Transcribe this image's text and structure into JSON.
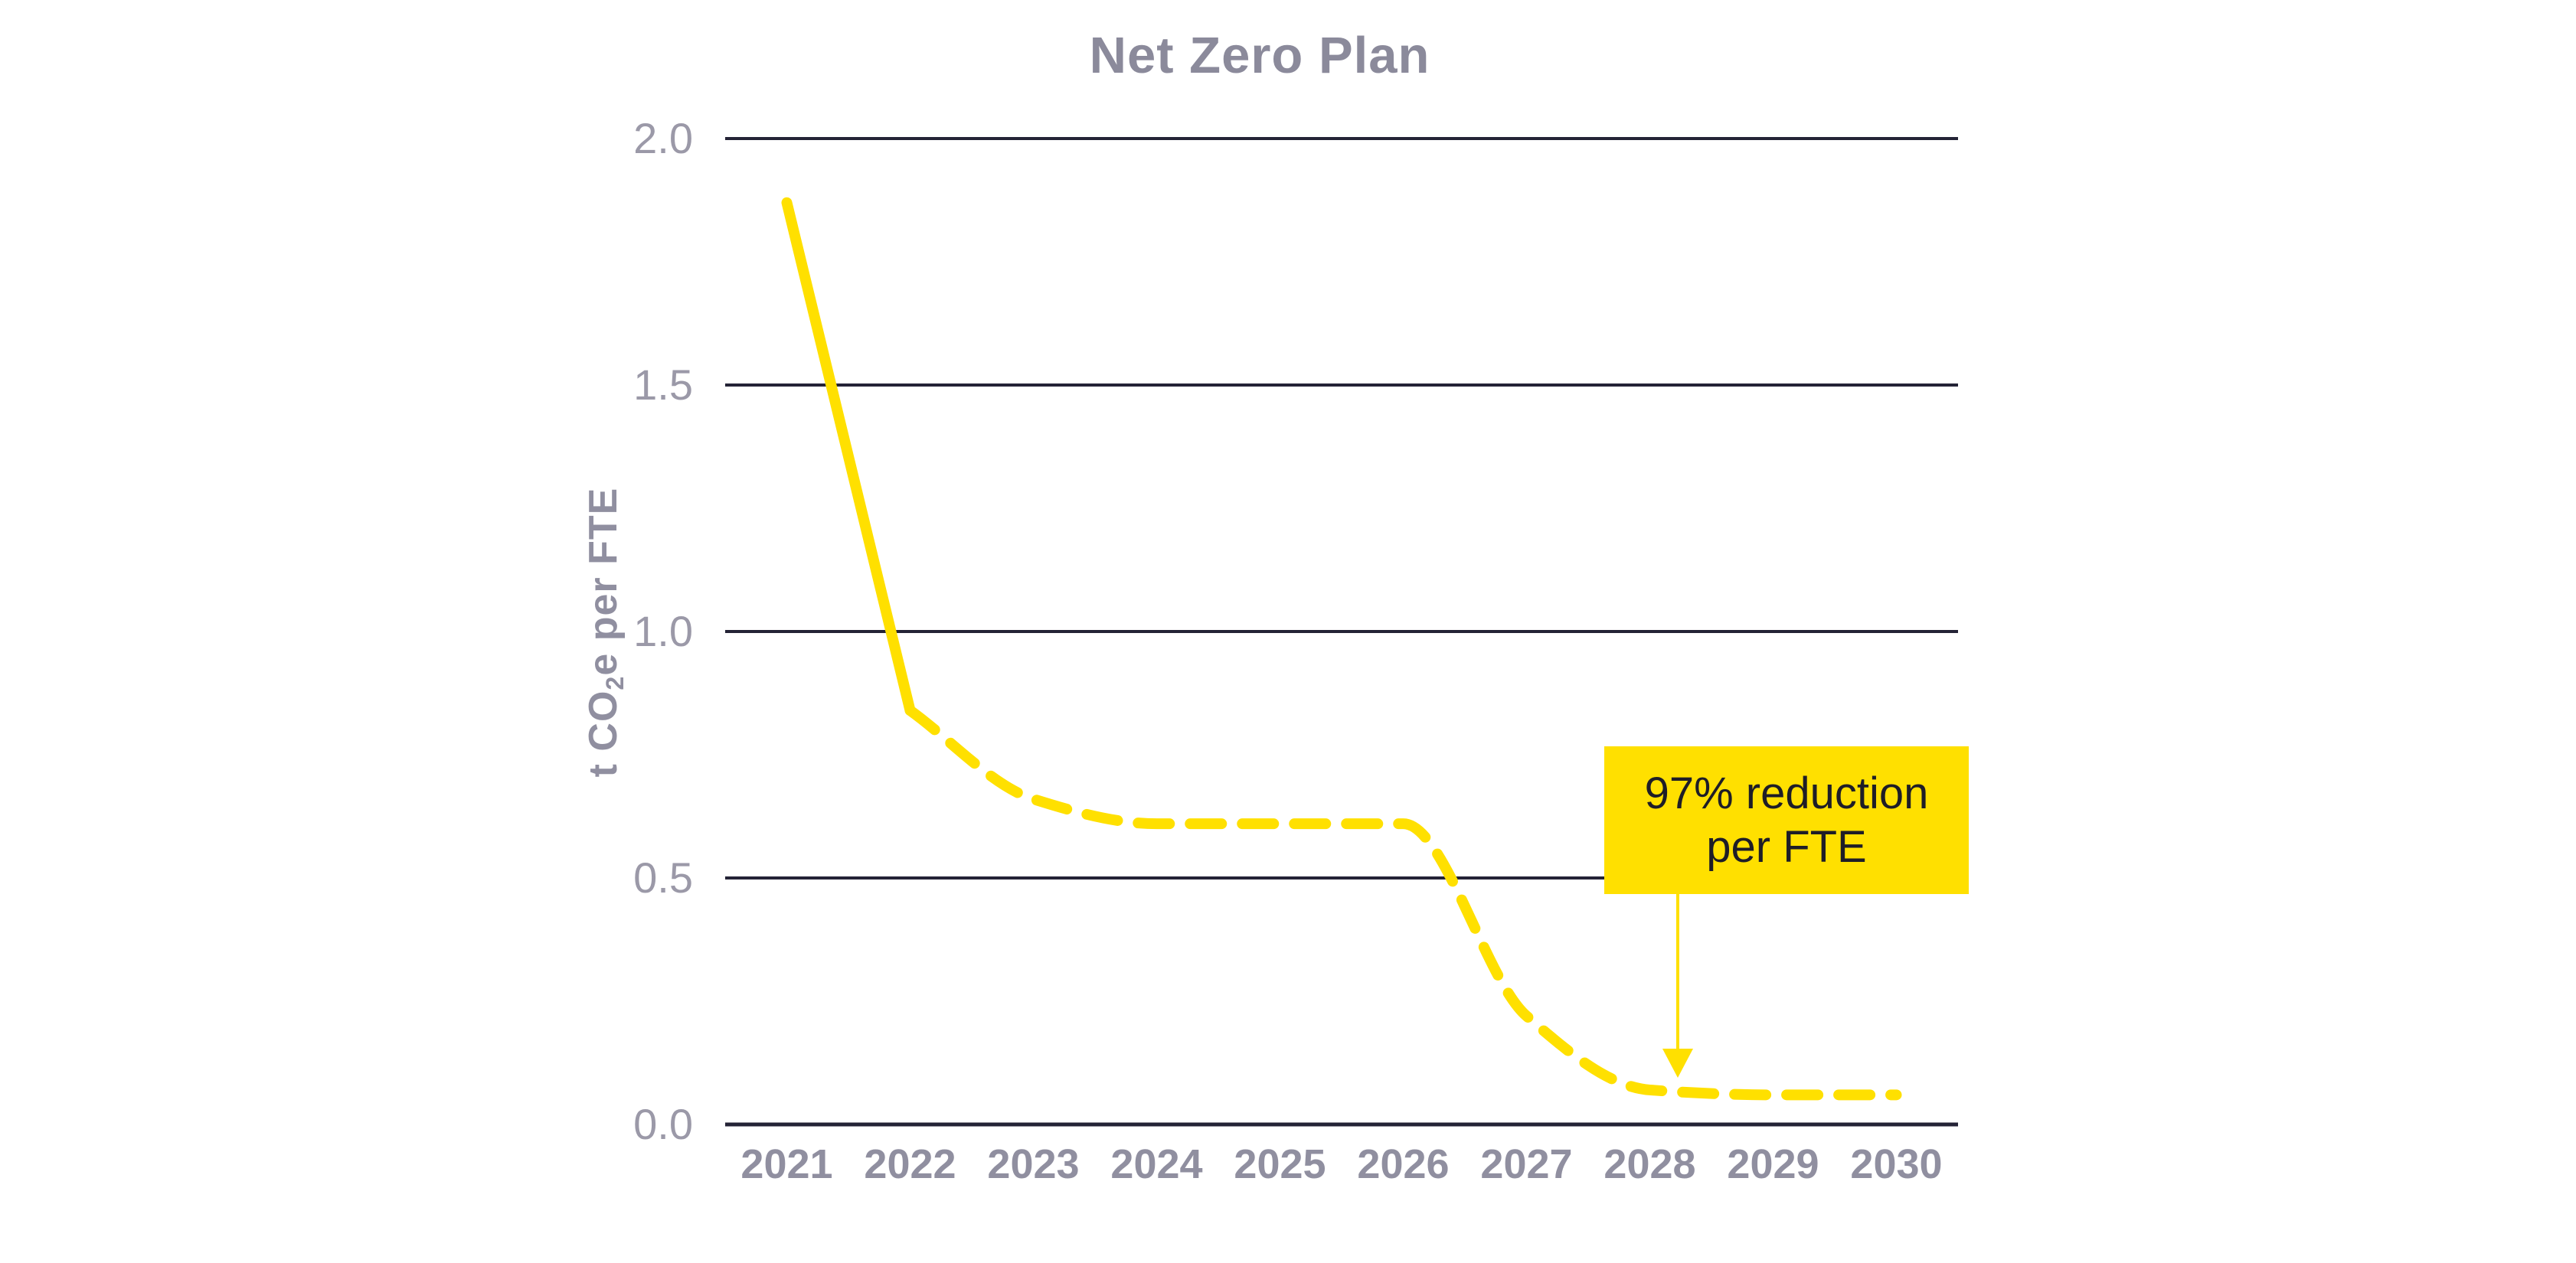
{
  "title": "Net Zero Plan",
  "chart_data": {
    "type": "line",
    "title": "Net Zero Plan",
    "xlabel": "",
    "ylabel": "t CO2e per FTE",
    "ylabel_parts": {
      "pre": "t CO",
      "sub": "2",
      "post": "e per FTE"
    },
    "categories": [
      "2021",
      "2022",
      "2023",
      "2024",
      "2025",
      "2026",
      "2027",
      "2028",
      "2029",
      "2030"
    ],
    "series": [
      {
        "name": "t CO2e per FTE",
        "values": [
          1.87,
          0.84,
          0.66,
          0.61,
          0.61,
          0.61,
          0.22,
          0.07,
          0.06,
          0.06
        ],
        "color": "#FFE000",
        "line_style": "solid from 2021 to 2022, dashed from 2022 to 2030"
      }
    ],
    "ylim": [
      0,
      2.0
    ],
    "yticks": [
      {
        "label": "2.0",
        "value": 2.0
      },
      {
        "label": "1.5",
        "value": 1.5
      },
      {
        "label": "1.0",
        "value": 1.0
      },
      {
        "label": "0.5",
        "value": 0.5
      },
      {
        "label": "0.0",
        "value": 0.0
      }
    ],
    "grid": "horizontal gridlines only, no vertical axis line",
    "legend_position": "none",
    "annotation": {
      "text_line1": "97% reduction",
      "text_line2": "per FTE",
      "points_to_year": "2028"
    }
  },
  "colors": {
    "yellow": "#FFE000",
    "title_gray": "#8B8A9B",
    "label_gray": "#908FA0",
    "tick_gray": "#9B99A8",
    "axis_dark": "#242336",
    "annotation_text": "#1E1D27",
    "background": "#FFFFFF"
  }
}
